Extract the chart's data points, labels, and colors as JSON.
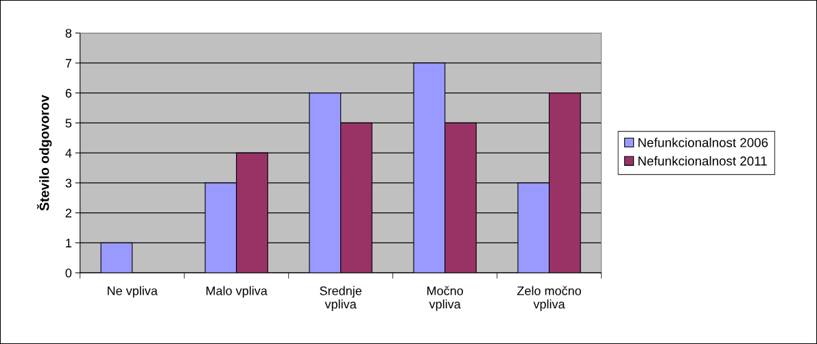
{
  "chart_data": {
    "type": "bar",
    "ylabel": "Število odgovorov",
    "categories": [
      "Ne vpliva",
      "Malo vpliva",
      "Srednje\nvpliva",
      "Močno\nvpliva",
      "Zelo močno\nvpliva"
    ],
    "series": [
      {
        "name": "Nefunkcionalnost 2006",
        "color": "#9999ff",
        "values": [
          1,
          3,
          6,
          7,
          3
        ]
      },
      {
        "name": "Nefunkcionalnost 2011",
        "color": "#993366",
        "values": [
          0,
          4,
          5,
          5,
          6
        ]
      }
    ],
    "ylim": [
      0,
      8
    ],
    "yticks": [
      0,
      1,
      2,
      3,
      4,
      5,
      6,
      7,
      8
    ],
    "grid": "y",
    "legend": "right"
  }
}
